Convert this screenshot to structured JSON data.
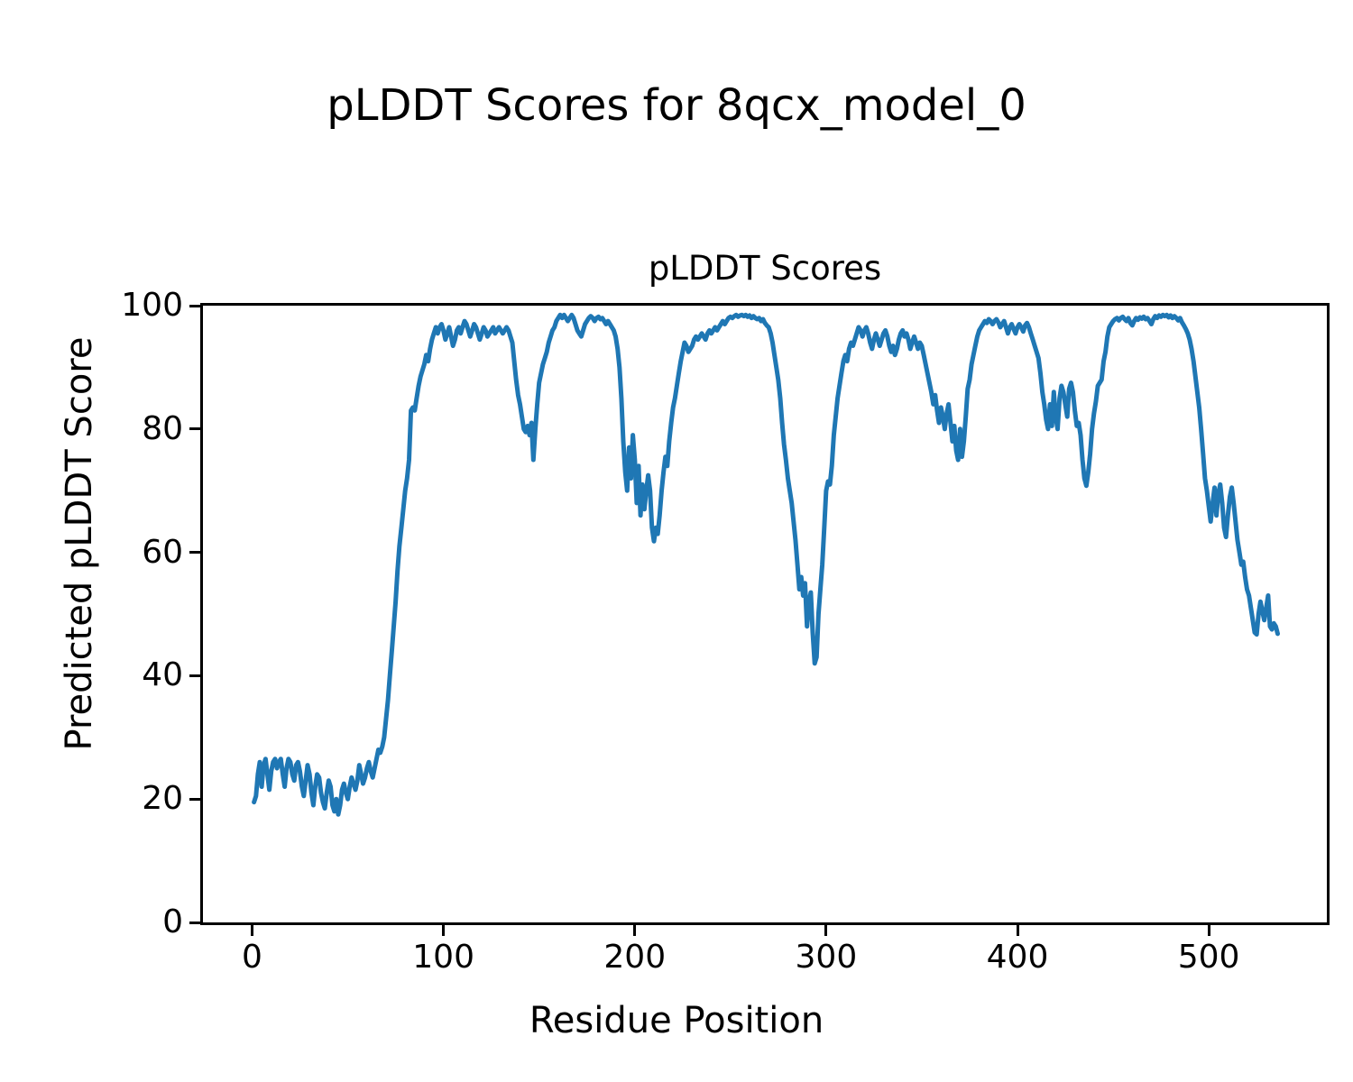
{
  "figure": {
    "suptitle": "pLDDT Scores for 8qcx_model_0",
    "background_color": "#ffffff",
    "text_color": "#000000"
  },
  "chart_data": {
    "type": "line",
    "title": "pLDDT Scores",
    "xlabel": "Residue Position",
    "ylabel": "Predicted pLDDT Score",
    "xlim": [
      -25.7,
      561.7
    ],
    "ylim": [
      0,
      100
    ],
    "x_ticks": [
      0,
      100,
      200,
      300,
      400,
      500
    ],
    "y_ticks": [
      0,
      20,
      40,
      60,
      80,
      100
    ],
    "grid": false,
    "legend_position": "none",
    "line_color": "#1f77b4",
    "line_width": 5,
    "series": [
      {
        "name": "pLDDT",
        "x_start": 1,
        "x_step": 1,
        "values": [
          19.5,
          20.5,
          24,
          26,
          22,
          25.5,
          26.5,
          24,
          21.5,
          24.5,
          26,
          26.5,
          25,
          26,
          26.5,
          24,
          22,
          25,
          26.5,
          26,
          24,
          23,
          25.5,
          26,
          24.5,
          22,
          20.5,
          23,
          25.5,
          24,
          21,
          19,
          22,
          24,
          23.5,
          21,
          19.5,
          18.5,
          21,
          23,
          22,
          19,
          18,
          20,
          17.5,
          19,
          21.5,
          22.5,
          21,
          20,
          22,
          23.5,
          22.5,
          21.5,
          23,
          25.5,
          24,
          22.5,
          23.5,
          25,
          26,
          24.5,
          23.5,
          25,
          26.5,
          28,
          27.5,
          28.5,
          30,
          33,
          36,
          40,
          44,
          48,
          52,
          57,
          61,
          64,
          67,
          70,
          72,
          75,
          83,
          83.5,
          83,
          85,
          87,
          88.5,
          89.5,
          90.5,
          92,
          91,
          93,
          94.5,
          95.5,
          96.5,
          95.5,
          96.5,
          97,
          96,
          94.5,
          95.5,
          96.5,
          95,
          93.5,
          94.5,
          96,
          96.5,
          95.5,
          96.5,
          97.5,
          97,
          96,
          95,
          96,
          97,
          96.5,
          95.5,
          94.5,
          95.5,
          96.5,
          96,
          95,
          95.5,
          96,
          96.5,
          95.5,
          96,
          96.5,
          96,
          95.5,
          96,
          96.5,
          96,
          95,
          94,
          91,
          88,
          85.5,
          84,
          82,
          80,
          79.5,
          80.5,
          79,
          81,
          75,
          80,
          84,
          87.5,
          89,
          90.5,
          91.5,
          92.5,
          94,
          95,
          96,
          96.5,
          97.5,
          98,
          98.5,
          98,
          98.5,
          98,
          97.5,
          98,
          98.5,
          98,
          97,
          96,
          95.5,
          95,
          96,
          97,
          97.5,
          98,
          98.3,
          98,
          97.5,
          98,
          98.2,
          97.8,
          98,
          97.5,
          97,
          97.5,
          97,
          96.5,
          96,
          95,
          93,
          90,
          85,
          78,
          73,
          70,
          77,
          72,
          79,
          75,
          68,
          74,
          66,
          71,
          67,
          70,
          72.5,
          70,
          64,
          61.8,
          64,
          63,
          66,
          70,
          73,
          75.5,
          74,
          78,
          81,
          83.5,
          85,
          87,
          89,
          91,
          92.5,
          94,
          93.5,
          92.5,
          93,
          93.5,
          94.5,
          95,
          94.5,
          95,
          95.5,
          95,
          94.5,
          95.5,
          96,
          95.5,
          96,
          96.5,
          96,
          96.5,
          97,
          97.5,
          97,
          97.5,
          98,
          98.2,
          98,
          98.3,
          98.5,
          98.2,
          98.4,
          98.5,
          98.3,
          98.5,
          98.2,
          98.4,
          98,
          98.3,
          98,
          97.8,
          98,
          97.5,
          97.8,
          97.2,
          96.8,
          96.5,
          95.5,
          94,
          92,
          90,
          88,
          85,
          81,
          77.5,
          75,
          72,
          70,
          68,
          65,
          62,
          58,
          54,
          56,
          53,
          55,
          48,
          52,
          53.5,
          47,
          42,
          43,
          50,
          54,
          58,
          64,
          70,
          71.5,
          71,
          74,
          79,
          82,
          85,
          87,
          89,
          91,
          92,
          91,
          93,
          94,
          93.5,
          94.5,
          95.5,
          96.5,
          96,
          95,
          96,
          96.5,
          95.5,
          94,
          93,
          94.5,
          95.5,
          94.5,
          93.5,
          94.5,
          95.5,
          96,
          95,
          93.5,
          92.5,
          93.5,
          92,
          93,
          94.5,
          95.5,
          96,
          95,
          95.5,
          94.5,
          93,
          94,
          95,
          94,
          93,
          94,
          93.5,
          92,
          90.5,
          89,
          87.5,
          86,
          84,
          85.5,
          83,
          81,
          83.5,
          82,
          80,
          82.5,
          84,
          81,
          78,
          80.5,
          76.5,
          75,
          80,
          75.5,
          78,
          82,
          86.5,
          88,
          90.5,
          92,
          93.5,
          95,
          96,
          96.5,
          97,
          97.5,
          97.2,
          97.8,
          97.5,
          97,
          97.5,
          97.8,
          97.3,
          96.5,
          97,
          97.5,
          96.5,
          95.5,
          96.5,
          97,
          96.2,
          95.5,
          96.5,
          97,
          96.5,
          95.8,
          96.8,
          97.2,
          96.5,
          95.5,
          94.5,
          93.5,
          92.5,
          91.5,
          89,
          86,
          84,
          81.5,
          80,
          84,
          80.5,
          86,
          82,
          80,
          85,
          87,
          86,
          84,
          82,
          86.5,
          87.5,
          86,
          83,
          80.5,
          81,
          79,
          75,
          72,
          70.8,
          73,
          76,
          80,
          82.5,
          84.5,
          87,
          87.5,
          88,
          91,
          92.5,
          95,
          96.5,
          97,
          97.5,
          97.8,
          98,
          97.6,
          98,
          98.2,
          97.8,
          97.5,
          98,
          97.2,
          96.8,
          97.5,
          98,
          97.7,
          98.1,
          97.9,
          98.2,
          97.8,
          98,
          97.5,
          97,
          97.8,
          98.3,
          98,
          98.4,
          98.2,
          98.5,
          98.3,
          98.5,
          98.1,
          98.4,
          98,
          98.3,
          98,
          97.6,
          98,
          97.3,
          96.8,
          96.2,
          95.5,
          94.5,
          93,
          91,
          88.5,
          86,
          83.5,
          80,
          76,
          72,
          70,
          67.5,
          65,
          68,
          70.5,
          66,
          69.5,
          71,
          68,
          64,
          62.5,
          66,
          69,
          70.5,
          68,
          65,
          62,
          60,
          58,
          58.5,
          56,
          54,
          53,
          51,
          49,
          47,
          46.7,
          50,
          52,
          50.5,
          49,
          51,
          53,
          48,
          47.5,
          48.5,
          48,
          46.8
        ]
      }
    ]
  }
}
